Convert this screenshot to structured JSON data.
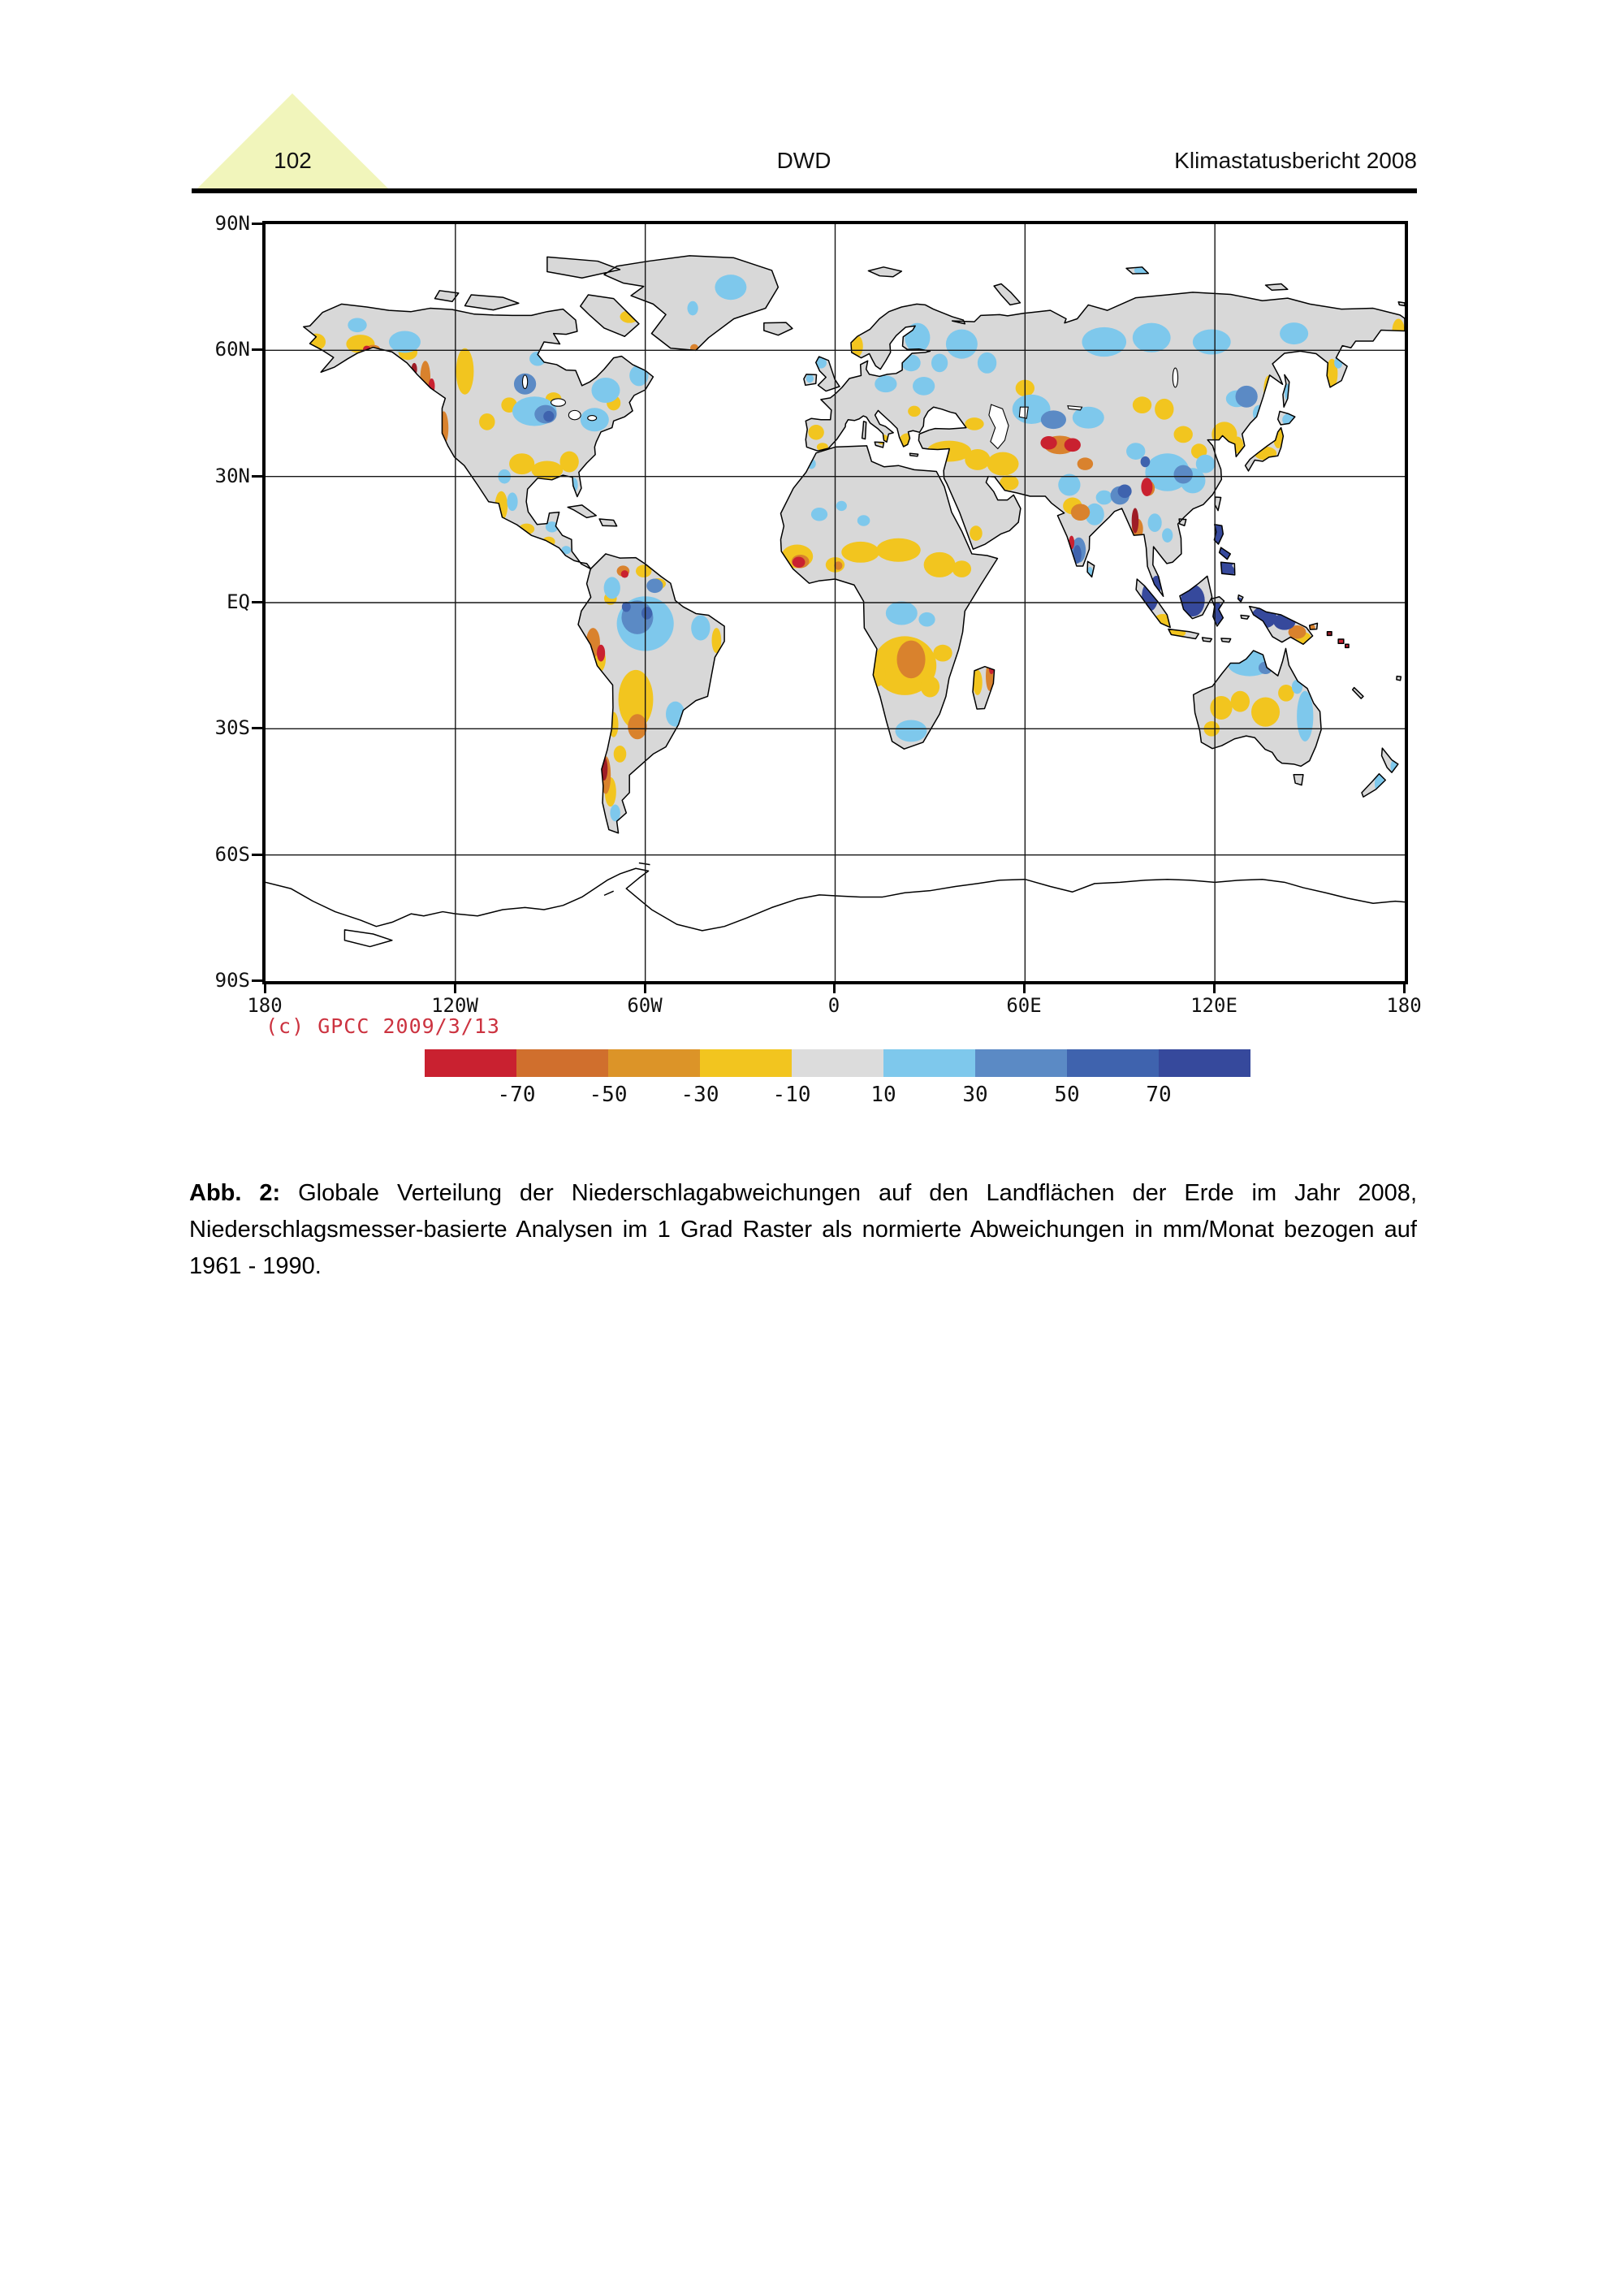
{
  "header": {
    "page_number": "102",
    "center": "DWD",
    "right": "Klimastatusbericht 2008"
  },
  "figure": {
    "copyright": "(c) GPCC 2009/3/13",
    "lat_labels": [
      "90N",
      "60N",
      "30N",
      "EQ",
      "30S",
      "60S",
      "90S"
    ],
    "lon_labels": [
      "180",
      "120W",
      "60W",
      "0",
      "60E",
      "120E",
      "180"
    ],
    "colorbar": {
      "labels": [
        "-70",
        "-50",
        "-30",
        "-10",
        "10",
        "30",
        "50",
        "70"
      ],
      "colors": [
        "#c92130",
        "#d06f2d",
        "#dc9428",
        "#f2c51f",
        "#dcdcdc",
        "#7ec8ec",
        "#5b8ac5",
        "#3f63ae",
        "#36499c"
      ]
    },
    "map_colors": {
      "land": "#d8d8d8",
      "ocean": "#ffffff",
      "coastline": "#000000"
    }
  },
  "caption": {
    "label": "Abb. 2:",
    "text": "Globale Verteilung der Niederschlagabweichungen auf den Landflächen der Erde im Jahr 2008, Niederschlagsmesser-basierte Analysen im 1 Grad Raster als normierte Abweichungen in mm/Monat bezogen auf 1961 - 1990."
  },
  "chart_data": {
    "type": "heatmap",
    "title": "",
    "xlabel": "",
    "ylabel": "",
    "x_ticks": [
      "180",
      "120W",
      "60W",
      "0",
      "60E",
      "120E",
      "180"
    ],
    "y_ticks": [
      "90N",
      "60N",
      "30N",
      "EQ",
      "30S",
      "60S",
      "90S"
    ],
    "legend_bin_edges": [
      -70,
      -50,
      -30,
      -10,
      10,
      30,
      50,
      70
    ],
    "legend_colors": [
      "#c92130",
      "#d06f2d",
      "#dc9428",
      "#f2c51f",
      "#dcdcdc",
      "#7ec8ec",
      "#5b8ac5",
      "#3f63ae",
      "#36499c"
    ],
    "units": "mm/Monat, normierte Abweichungen, Bezugsperiode 1961 - 1990",
    "grid": true,
    "legend_position": "bottom"
  }
}
